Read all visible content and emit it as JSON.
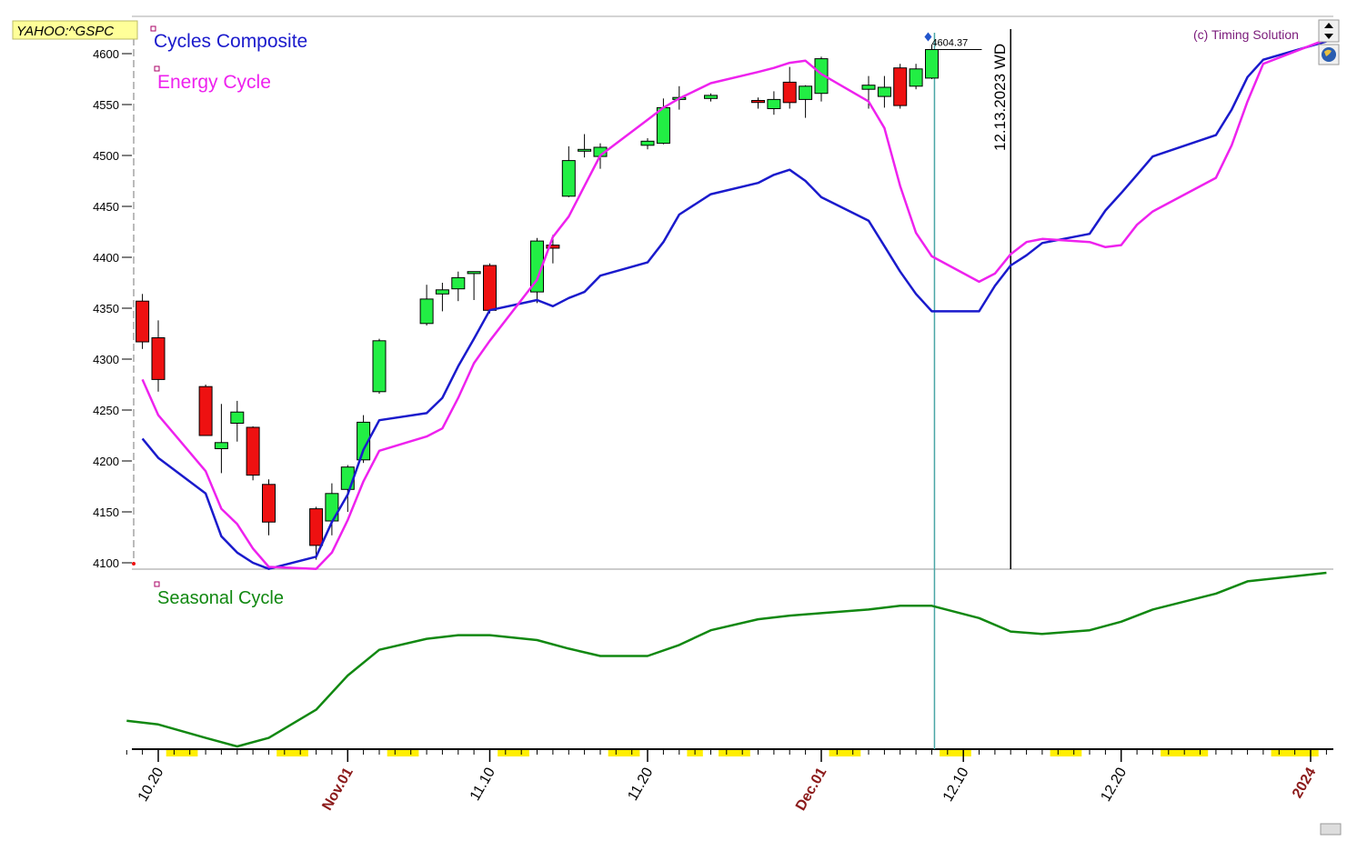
{
  "symbol_label": "YAHOO:^GSPC",
  "copyright": "(c) Timing Solution",
  "colors": {
    "up_candle": "#22ee44",
    "down_candle": "#ee1111",
    "composite": "#1a1acc",
    "energy": "#ee22ee",
    "seasonal": "#118811",
    "marker_line": "#4aa6a6",
    "highlight": "#ffee00",
    "month_tick": "#8b1a1a"
  },
  "chart_data": [
    {
      "type": "candlestick",
      "title": "",
      "ylim": [
        4095,
        4625
      ],
      "yticks": [
        4100,
        4150,
        4200,
        4250,
        4300,
        4350,
        4400,
        4450,
        4500,
        4550,
        4600
      ],
      "last_price_label": "4604.37",
      "vline_label": "12.13.2023 WD",
      "ohlc": [
        {
          "date": "2023-10-19",
          "o": 4357,
          "h": 4364,
          "l": 4310,
          "c": 4317
        },
        {
          "date": "2023-10-20",
          "o": 4321,
          "h": 4338,
          "l": 4268,
          "c": 4280
        },
        {
          "date": "2023-10-23",
          "o": 4273,
          "h": 4275,
          "l": 4225,
          "c": 4225
        },
        {
          "date": "2023-10-24",
          "o": 4212,
          "h": 4256,
          "l": 4188,
          "c": 4218
        },
        {
          "date": "2023-10-25",
          "o": 4237,
          "h": 4259,
          "l": 4219,
          "c": 4248
        },
        {
          "date": "2023-10-26",
          "o": 4233,
          "h": 4234,
          "l": 4181,
          "c": 4186
        },
        {
          "date": "2023-10-27",
          "o": 4177,
          "h": 4182,
          "l": 4127,
          "c": 4140
        },
        {
          "date": "2023-10-30",
          "o": 4153,
          "h": 4155,
          "l": 4103,
          "c": 4117
        },
        {
          "date": "2023-10-31",
          "o": 4141,
          "h": 4178,
          "l": 4127,
          "c": 4168
        },
        {
          "date": "2023-11-01",
          "o": 4172,
          "h": 4196,
          "l": 4150,
          "c": 4194
        },
        {
          "date": "2023-11-02",
          "o": 4201,
          "h": 4245,
          "l": 4198,
          "c": 4238
        },
        {
          "date": "2023-11-03",
          "o": 4268,
          "h": 4320,
          "l": 4266,
          "c": 4318
        },
        {
          "date": "2023-11-06",
          "o": 4335,
          "h": 4373,
          "l": 4333,
          "c": 4359
        },
        {
          "date": "2023-11-07",
          "o": 4364,
          "h": 4375,
          "l": 4347,
          "c": 4368
        },
        {
          "date": "2023-11-08",
          "o": 4369,
          "h": 4386,
          "l": 4357,
          "c": 4380
        },
        {
          "date": "2023-11-09",
          "o": 4384,
          "h": 4386,
          "l": 4358,
          "c": 4386
        },
        {
          "date": "2023-11-10",
          "o": 4392,
          "h": 4394,
          "l": 4345,
          "c": 4348
        },
        {
          "date": "2023-11-13",
          "o": 4366,
          "h": 4419,
          "l": 4355,
          "c": 4416
        },
        {
          "date": "2023-11-14",
          "o": 4412,
          "h": 4422,
          "l": 4394,
          "c": 4409
        },
        {
          "date": "2023-11-15",
          "o": 4460,
          "h": 4509,
          "l": 4459,
          "c": 4495
        },
        {
          "date": "2023-11-16",
          "o": 4505,
          "h": 4521,
          "l": 4498,
          "c": 4506
        },
        {
          "date": "2023-11-17",
          "o": 4499,
          "h": 4512,
          "l": 4487,
          "c": 4508
        },
        {
          "date": "2023-11-20",
          "o": 4510,
          "h": 4517,
          "l": 4506,
          "c": 4514
        },
        {
          "date": "2023-11-21",
          "o": 4512,
          "h": 4556,
          "l": 4511,
          "c": 4547
        },
        {
          "date": "2023-11-22",
          "o": 4555,
          "h": 4568,
          "l": 4545,
          "c": 4557
        },
        {
          "date": "2023-11-24",
          "o": 4556,
          "h": 4561,
          "l": 4553,
          "c": 4559
        },
        {
          "date": "2023-11-27",
          "o": 4554,
          "h": 4557,
          "l": 4546,
          "c": 4552
        },
        {
          "date": "2023-11-28",
          "o": 4546,
          "h": 4563,
          "l": 4540,
          "c": 4555
        },
        {
          "date": "2023-11-29",
          "o": 4572,
          "h": 4587,
          "l": 4546,
          "c": 4552
        },
        {
          "date": "2023-11-30",
          "o": 4555,
          "h": 4569,
          "l": 4537,
          "c": 4568
        },
        {
          "date": "2023-12-01",
          "o": 4561,
          "h": 4597,
          "l": 4553,
          "c": 4595
        },
        {
          "date": "2023-12-04",
          "o": 4565,
          "h": 4578,
          "l": 4546,
          "c": 4569
        },
        {
          "date": "2023-12-05",
          "o": 4558,
          "h": 4578,
          "l": 4547,
          "c": 4567
        },
        {
          "date": "2023-12-06",
          "o": 4586,
          "h": 4590,
          "l": 4546,
          "c": 4549
        },
        {
          "date": "2023-12-07",
          "o": 4568,
          "h": 4590,
          "l": 4565,
          "c": 4585
        },
        {
          "date": "2023-12-08",
          "o": 4576,
          "h": 4609,
          "l": 4575,
          "c": 4604
        }
      ],
      "series": [
        {
          "name": "Cycles Composite",
          "x": [
            "2023-10-19",
            "2023-10-20",
            "2023-10-23",
            "2023-10-24",
            "2023-10-25",
            "2023-10-26",
            "2023-10-27",
            "2023-10-30",
            "2023-10-31",
            "2023-11-01",
            "2023-11-02",
            "2023-11-03",
            "2023-11-06",
            "2023-11-07",
            "2023-11-08",
            "2023-11-09",
            "2023-11-10",
            "2023-11-13",
            "2023-11-14",
            "2023-11-15",
            "2023-11-16",
            "2023-11-17",
            "2023-11-20",
            "2023-11-21",
            "2023-11-22",
            "2023-11-24",
            "2023-11-27",
            "2023-11-28",
            "2023-11-29",
            "2023-11-30",
            "2023-12-01",
            "2023-12-04",
            "2023-12-05",
            "2023-12-06",
            "2023-12-07",
            "2023-12-08",
            "2023-12-11",
            "2023-12-12",
            "2023-12-13",
            "2023-12-14",
            "2023-12-15",
            "2023-12-18",
            "2023-12-19",
            "2023-12-20",
            "2023-12-21",
            "2023-12-22",
            "2023-12-26",
            "2023-12-27",
            "2023-12-28",
            "2023-12-29",
            "2024-01-02"
          ],
          "values": [
            4222,
            4203,
            4168,
            4126,
            4110,
            4100,
            4094,
            4106,
            4140,
            4167,
            4211,
            4240,
            4247,
            4262,
            4293,
            4320,
            4348,
            4358,
            4352,
            4360,
            4366,
            4382,
            4395,
            4415,
            4442,
            4462,
            4473,
            4481,
            4486,
            4475,
            4459,
            4436,
            4411,
            4386,
            4364,
            4347,
            4347,
            4372,
            4392,
            4402,
            4414,
            4423,
            4446,
            4463,
            4481,
            4499,
            4520,
            4545,
            4577,
            4594,
            4612
          ]
        },
        {
          "name": "Energy Cycle",
          "x": [
            "2023-10-19",
            "2023-10-20",
            "2023-10-23",
            "2023-10-24",
            "2023-10-25",
            "2023-10-26",
            "2023-10-27",
            "2023-10-30",
            "2023-10-31",
            "2023-11-01",
            "2023-11-02",
            "2023-11-03",
            "2023-11-06",
            "2023-11-07",
            "2023-11-08",
            "2023-11-09",
            "2023-11-10",
            "2023-11-13",
            "2023-11-14",
            "2023-11-15",
            "2023-11-16",
            "2023-11-17",
            "2023-11-20",
            "2023-11-21",
            "2023-11-22",
            "2023-11-24",
            "2023-11-27",
            "2023-11-28",
            "2023-11-29",
            "2023-11-30",
            "2023-12-01",
            "2023-12-04",
            "2023-12-05",
            "2023-12-06",
            "2023-12-07",
            "2023-12-08",
            "2023-12-11",
            "2023-12-12",
            "2023-12-13",
            "2023-12-14",
            "2023-12-15",
            "2023-12-18",
            "2023-12-19",
            "2023-12-20",
            "2023-12-21",
            "2023-12-22",
            "2023-12-26",
            "2023-12-27",
            "2023-12-28",
            "2023-12-29",
            "2024-01-02"
          ],
          "values": [
            4280,
            4245,
            4190,
            4153,
            4138,
            4114,
            4096,
            4094,
            4110,
            4142,
            4180,
            4210,
            4224,
            4232,
            4262,
            4296,
            4318,
            4378,
            4420,
            4440,
            4470,
            4500,
            4535,
            4547,
            4556,
            4571,
            4582,
            4586,
            4591,
            4593,
            4580,
            4553,
            4527,
            4470,
            4424,
            4401,
            4376,
            4384,
            4403,
            4415,
            4418,
            4415,
            4410,
            4412,
            4432,
            4445,
            4478,
            4510,
            4553,
            4590,
            4614
          ]
        }
      ]
    },
    {
      "type": "line",
      "title": "",
      "series": [
        {
          "name": "Seasonal Cycle",
          "x": [
            "2023-10-18",
            "2023-10-20",
            "2023-10-23",
            "2023-10-25",
            "2023-10-27",
            "2023-10-30",
            "2023-11-01",
            "2023-11-03",
            "2023-11-06",
            "2023-11-08",
            "2023-11-10",
            "2023-11-13",
            "2023-11-15",
            "2023-11-17",
            "2023-11-20",
            "2023-11-22",
            "2023-11-24",
            "2023-11-27",
            "2023-11-29",
            "2023-12-01",
            "2023-12-04",
            "2023-12-06",
            "2023-12-08",
            "2023-12-11",
            "2023-12-13",
            "2023-12-15",
            "2023-12-18",
            "2023-12-20",
            "2023-12-22",
            "2023-12-26",
            "2023-12-28",
            "2024-01-02"
          ],
          "values": [
            0.21,
            0.18,
            0.07,
            0.0,
            0.07,
            0.3,
            0.58,
            0.79,
            0.88,
            0.91,
            0.91,
            0.87,
            0.8,
            0.74,
            0.74,
            0.83,
            0.95,
            1.04,
            1.07,
            1.09,
            1.12,
            1.15,
            1.15,
            1.05,
            0.94,
            0.92,
            0.95,
            1.02,
            1.12,
            1.25,
            1.35,
            1.42
          ]
        }
      ]
    }
  ],
  "x_axis": {
    "labels": [
      {
        "date": "2023-10-20",
        "text": "10.20",
        "month": false
      },
      {
        "date": "2023-11-01",
        "text": "Nov.01",
        "month": true
      },
      {
        "date": "2023-11-10",
        "text": "11.10",
        "month": false
      },
      {
        "date": "2023-11-20",
        "text": "11.20",
        "month": false
      },
      {
        "date": "2023-12-01",
        "text": "Dec.01",
        "month": true
      },
      {
        "date": "2023-12-10",
        "text": "12.10",
        "month": false
      },
      {
        "date": "2023-12-20",
        "text": "12.20",
        "month": false
      },
      {
        "date": "2024-01-01",
        "text": "2024",
        "month": true
      }
    ],
    "weekend_blocks": [
      [
        "2023-10-21",
        "2023-10-22"
      ],
      [
        "2023-10-28",
        "2023-10-29"
      ],
      [
        "2023-11-04",
        "2023-11-05"
      ],
      [
        "2023-11-11",
        "2023-11-12"
      ],
      [
        "2023-11-18",
        "2023-11-19"
      ],
      [
        "2023-11-23",
        "2023-11-23"
      ],
      [
        "2023-11-25",
        "2023-11-26"
      ],
      [
        "2023-12-02",
        "2023-12-03"
      ],
      [
        "2023-12-09",
        "2023-12-10"
      ],
      [
        "2023-12-16",
        "2023-12-17"
      ],
      [
        "2023-12-23",
        "2023-12-25"
      ],
      [
        "2023-12-30",
        "2024-01-01"
      ]
    ],
    "vline_date": "2023-12-13",
    "marker_date": "2023-12-08"
  }
}
